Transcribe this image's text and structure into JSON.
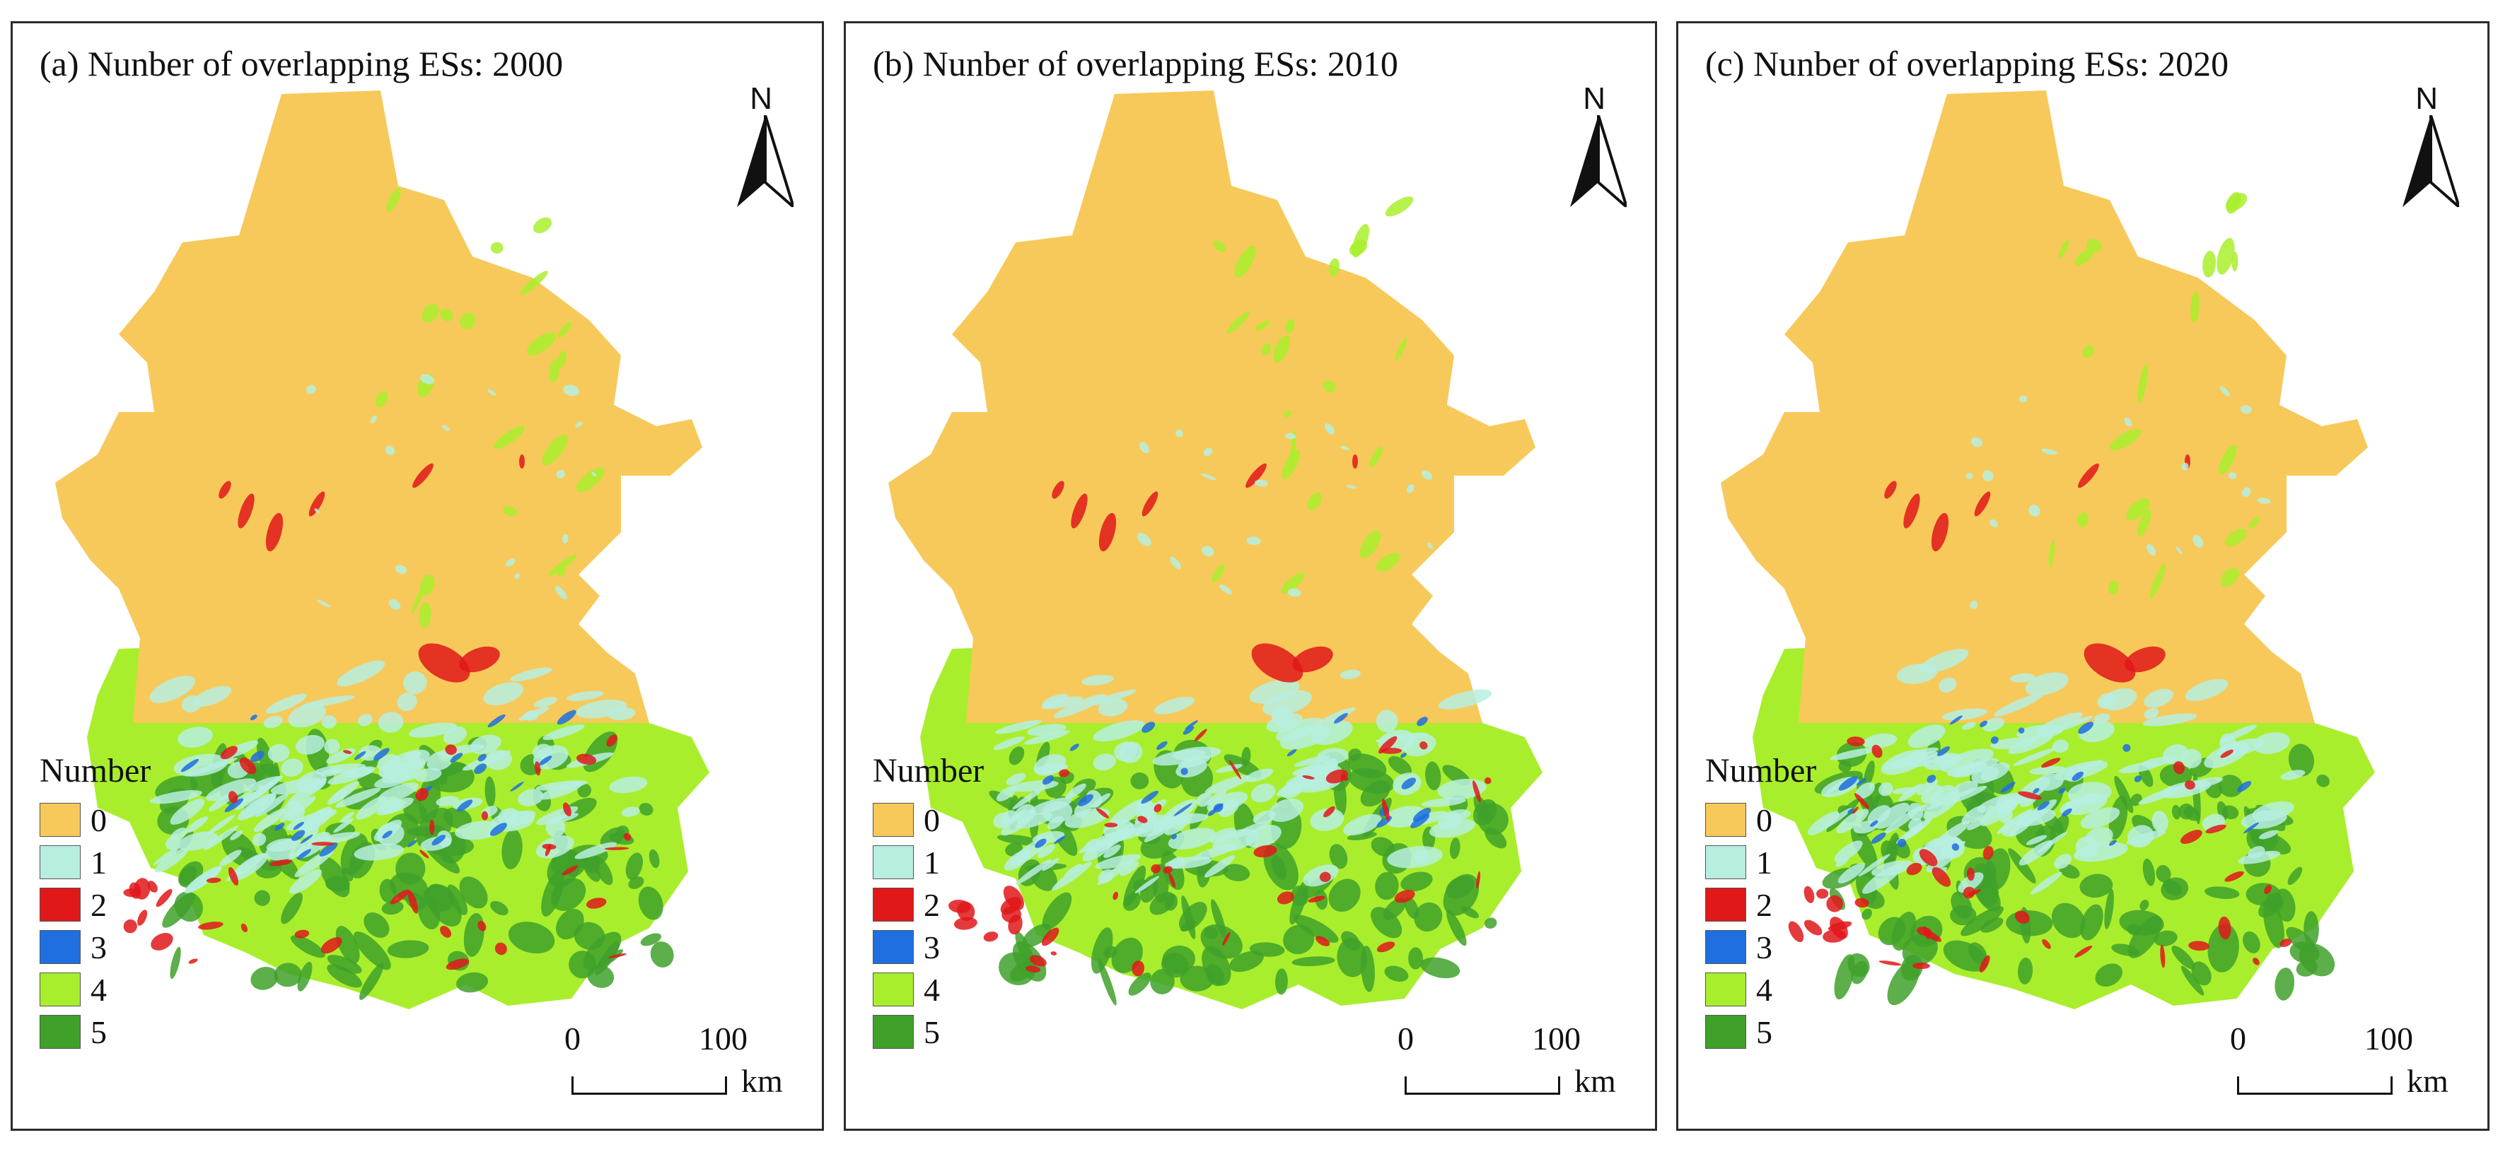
{
  "colors": {
    "c0": "#f7c95a",
    "c1": "#b7eee0",
    "c2": "#e1181a",
    "c3": "#1f6fe0",
    "c4": "#a9ee2d",
    "c5": "#3fa12a"
  },
  "panels": [
    {
      "title": "(a)  Nunber of overlapping ESs: 2000"
    },
    {
      "title": "(b)  Nunber of overlapping ESs: 2010"
    },
    {
      "title": "(c)  Nunber of overlapping ESs: 2020"
    }
  ],
  "north": "N",
  "legend": {
    "title": "Number",
    "items": [
      {
        "label": "0",
        "color": "#f7c95a"
      },
      {
        "label": "1",
        "color": "#b7eee0"
      },
      {
        "label": "2",
        "color": "#e1181a"
      },
      {
        "label": "3",
        "color": "#1f6fe0"
      },
      {
        "label": "4",
        "color": "#a9ee2d"
      },
      {
        "label": "5",
        "color": "#3fa12a"
      }
    ]
  },
  "scale": {
    "zero": "0",
    "hundred": "100",
    "unit": "km"
  }
}
